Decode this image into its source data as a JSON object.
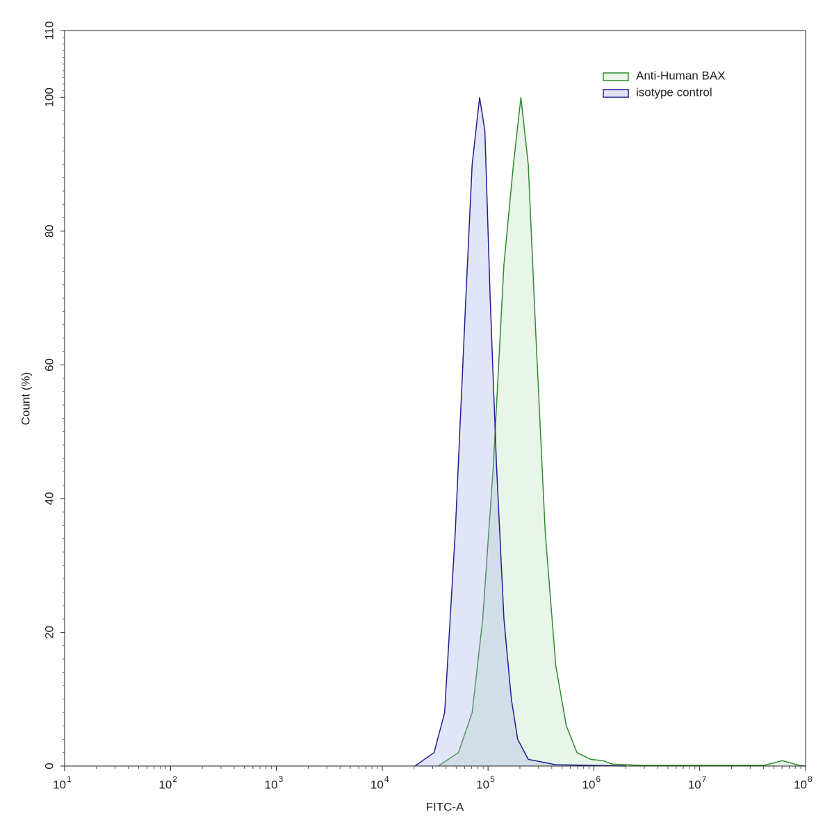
{
  "chart_data": {
    "type": "area",
    "x_label": "FITC-A",
    "y_label": "Count (%)",
    "xscale": "log",
    "xlim": [
      10,
      100000000
    ],
    "ylim": [
      0,
      110
    ],
    "xticks": [
      {
        "value": 10,
        "label": "10",
        "exponent": "1"
      },
      {
        "value": 100,
        "label": "10",
        "exponent": "2"
      },
      {
        "value": 1000,
        "label": "10",
        "exponent": "3"
      },
      {
        "value": 10000,
        "label": "10",
        "exponent": "4"
      },
      {
        "value": 100000,
        "label": "10",
        "exponent": "5"
      },
      {
        "value": 1000000,
        "label": "10",
        "exponent": "6"
      },
      {
        "value": 10000000,
        "label": "10",
        "exponent": "7"
      },
      {
        "value": 100000000,
        "label": "10",
        "exponent": "8"
      }
    ],
    "yticks": [
      0,
      20,
      40,
      60,
      80,
      100,
      110
    ],
    "legend": "top-right",
    "series": [
      {
        "name": "Anti-Human BAX",
        "color": "#2e8b2e",
        "fill": "rgba(150,210,150,0.22)",
        "x": [
          33900,
          52500,
          70800,
          89100,
          112200,
          141300,
          173800,
          204200,
          240000,
          281800,
          346700,
          436500,
          549500,
          691800,
          933300,
          1230000,
          1479000,
          2692000,
          40740000,
          60260000,
          87100000,
          100000000
        ],
        "values": [
          0,
          2,
          8,
          22,
          45,
          75,
          90,
          100,
          90,
          65,
          35,
          15,
          6,
          2,
          1,
          0.8,
          0.3,
          0.1,
          0.1,
          0.8,
          0.1,
          0
        ]
      },
      {
        "name": "isotype control",
        "color": "#1f1f8f",
        "fill": "rgba(160,170,230,0.3)",
        "x": [
          20400,
          30900,
          38900,
          49000,
          61700,
          70800,
          83200,
          93300,
          104700,
          120200,
          141300,
          166000,
          190500,
          240000,
          436500,
          1995000
        ],
        "values": [
          0,
          2,
          8,
          35,
          70,
          90,
          100,
          95,
          70,
          45,
          22,
          10,
          4,
          1,
          0.2,
          0
        ]
      }
    ]
  }
}
